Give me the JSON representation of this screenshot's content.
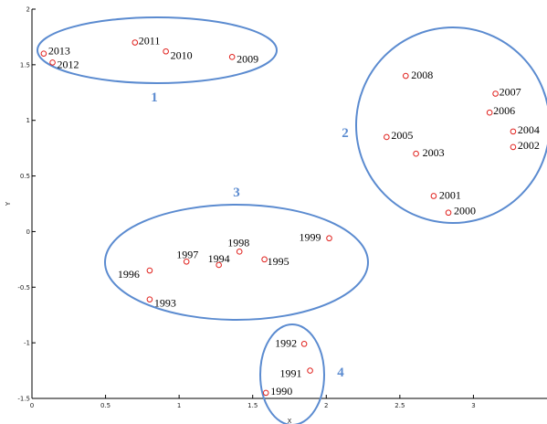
{
  "chart_data": {
    "type": "scatter",
    "title": "",
    "xlabel": "X",
    "ylabel": "Y",
    "xlim": [
      0,
      3.5
    ],
    "ylim": [
      -1.5,
      2
    ],
    "xticks": [
      "0",
      "0.5",
      "1",
      "1.5",
      "2",
      "2.5",
      "3"
    ],
    "yticks": [
      "-1.5",
      "-1",
      "-0.5",
      "0",
      "0.5",
      "1",
      "1.5",
      "2"
    ],
    "grid": false,
    "marker_color": "#e0211d",
    "cluster_color": "#5b8bd0",
    "points": [
      {
        "label": "2013",
        "x": 0.08,
        "y": 1.6
      },
      {
        "label": "2012",
        "x": 0.14,
        "y": 1.52
      },
      {
        "label": "2011",
        "x": 0.7,
        "y": 1.7
      },
      {
        "label": "2010",
        "x": 0.91,
        "y": 1.62
      },
      {
        "label": "2009",
        "x": 1.36,
        "y": 1.57
      },
      {
        "label": "2008",
        "x": 2.54,
        "y": 1.4
      },
      {
        "label": "2007",
        "x": 3.15,
        "y": 1.24
      },
      {
        "label": "2006",
        "x": 3.11,
        "y": 1.07
      },
      {
        "label": "2005",
        "x": 2.41,
        "y": 0.85
      },
      {
        "label": "2004",
        "x": 3.27,
        "y": 0.9
      },
      {
        "label": "2003",
        "x": 2.61,
        "y": 0.7
      },
      {
        "label": "2002",
        "x": 3.27,
        "y": 0.76
      },
      {
        "label": "2001",
        "x": 2.73,
        "y": 0.32
      },
      {
        "label": "2000",
        "x": 2.83,
        "y": 0.17
      },
      {
        "label": "1999",
        "x": 2.02,
        "y": -0.06
      },
      {
        "label": "1998",
        "x": 1.41,
        "y": -0.18
      },
      {
        "label": "1997",
        "x": 1.05,
        "y": -0.27
      },
      {
        "label": "1996",
        "x": 0.8,
        "y": -0.35
      },
      {
        "label": "1995",
        "x": 1.58,
        "y": -0.25
      },
      {
        "label": "1994",
        "x": 1.27,
        "y": -0.3
      },
      {
        "label": "1993",
        "x": 0.8,
        "y": -0.61
      },
      {
        "label": "1992",
        "x": 1.85,
        "y": -1.01
      },
      {
        "label": "1991",
        "x": 1.89,
        "y": -1.25
      },
      {
        "label": "1990",
        "x": 1.59,
        "y": -1.45
      }
    ],
    "clusters": [
      {
        "label": "1"
      },
      {
        "label": "2"
      },
      {
        "label": "3"
      },
      {
        "label": "4"
      }
    ]
  }
}
